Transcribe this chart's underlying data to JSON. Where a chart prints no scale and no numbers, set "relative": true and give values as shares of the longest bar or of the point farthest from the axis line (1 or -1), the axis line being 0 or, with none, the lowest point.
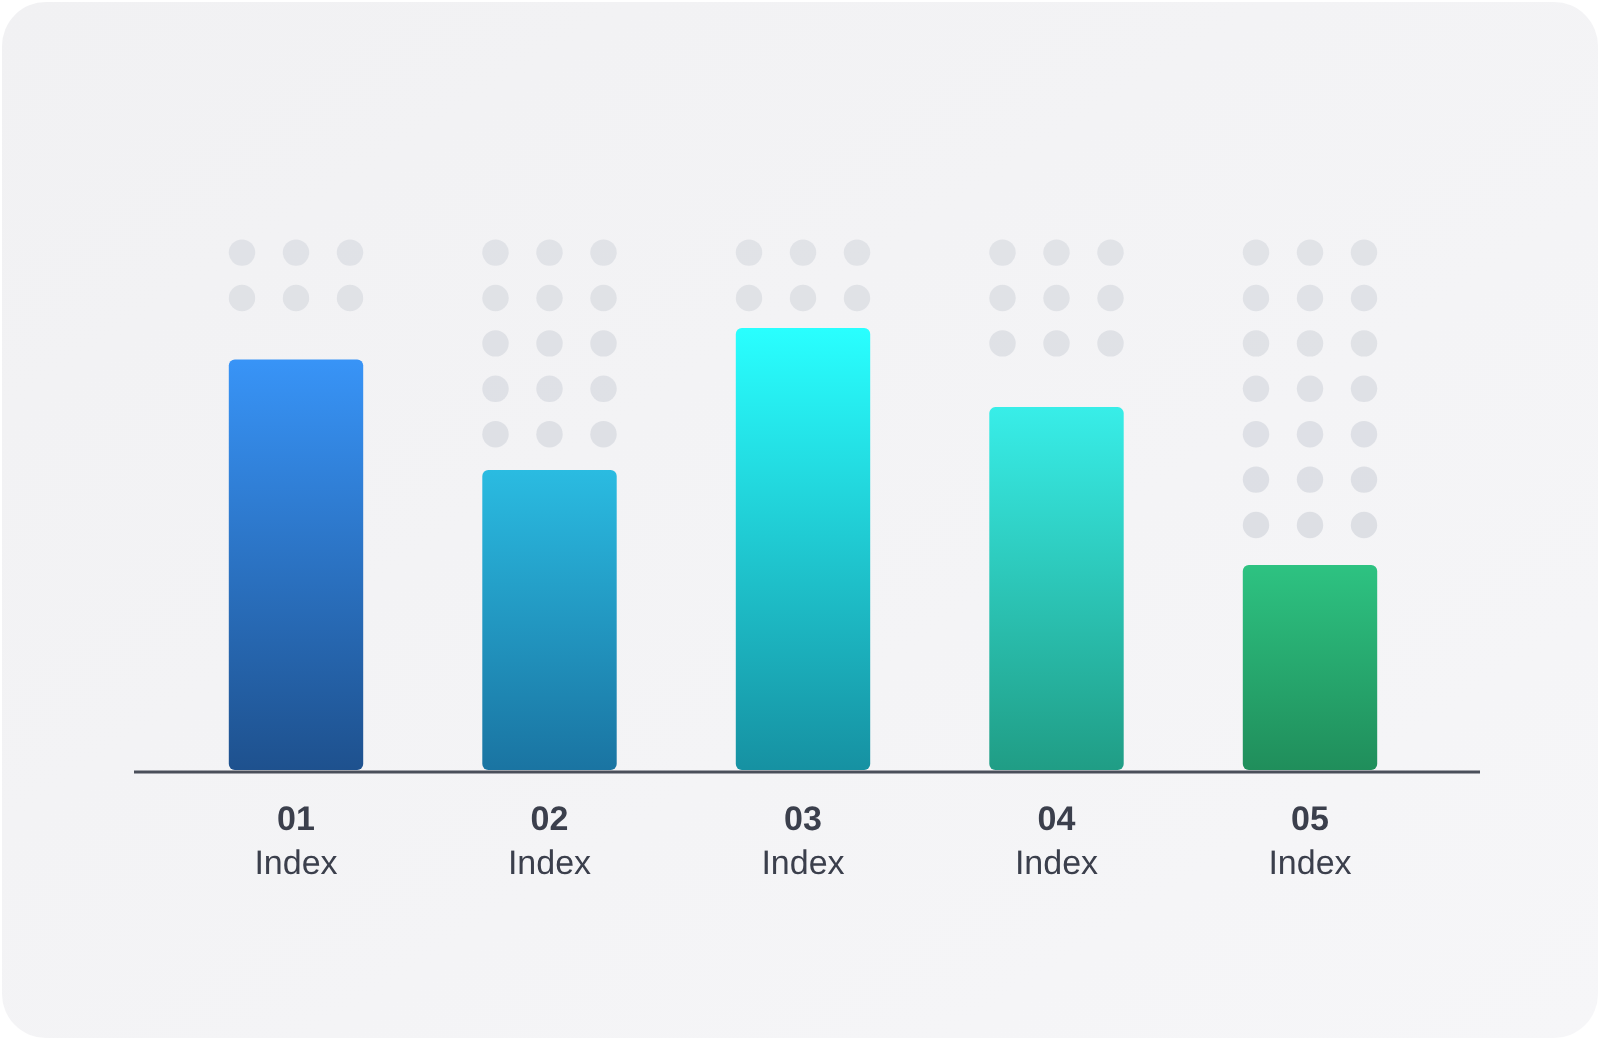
{
  "chart_data": {
    "type": "bar",
    "relative": true,
    "categories": [
      "01\nIndex",
      "02\nIndex",
      "03\nIndex",
      "04\nIndex",
      "05\nIndex"
    ],
    "values": [
      0.929,
      0.679,
      1,
      0.821,
      0.464
    ],
    "colors": [
      "#2a6fc4",
      "#24a0e0",
      "#1ec8e0",
      "#2cd8b8",
      "#2cc47e"
    ]
  }
}
